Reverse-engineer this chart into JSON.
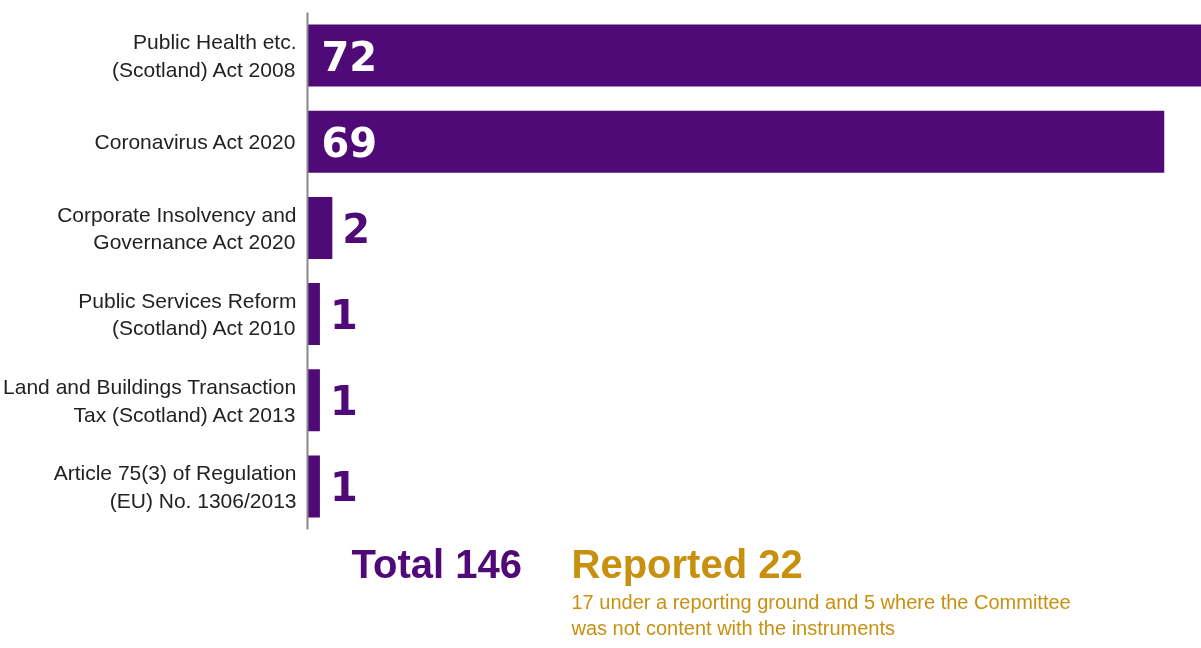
{
  "chart_data": {
    "type": "bar",
    "orientation": "horizontal",
    "color": "#4f0a78",
    "categories": [
      "Public Health etc.\n(Scotland) Act 2008",
      "Coronavirus Act 2020",
      "Corporate Insolvency and\nGovernance Act 2020",
      "Public Services Reform\n(Scotland) Act 2010",
      "Land and Buildings Transaction\nTax (Scotland) Act 2013",
      "Article 75(3) of Regulation\n(EU) No. 1306/2013"
    ],
    "values": [
      72,
      69,
      2,
      1,
      1,
      1
    ],
    "data_labels": true,
    "grid": false,
    "annotations": [
      "Total 146",
      "Reported 22",
      "17 under a reporting ground and 5 where the Committee\nwas not content with the instruments"
    ]
  }
}
